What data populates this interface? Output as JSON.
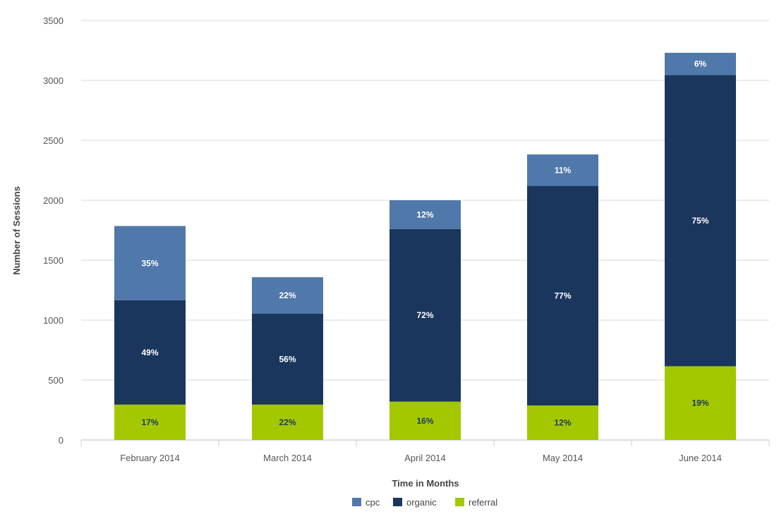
{
  "chart_data": {
    "type": "bar",
    "stacked": true,
    "categories": [
      "February 2014",
      "March 2014",
      "April 2014",
      "May 2014",
      "June 2014"
    ],
    "series": [
      {
        "name": "referral",
        "color": "#a4c800",
        "label_color": "#1b3a5c",
        "values": [
          295,
          295,
          320,
          288,
          615
        ],
        "labels": [
          "17%",
          "22%",
          "16%",
          "12%",
          "19%"
        ]
      },
      {
        "name": "organic",
        "color": "#1b365d",
        "label_color": "#ffffff",
        "values": [
          870,
          760,
          1440,
          1832,
          2430
        ],
        "labels": [
          "49%",
          "56%",
          "72%",
          "77%",
          "75%"
        ]
      },
      {
        "name": "cpc",
        "color": "#5078aa",
        "label_color": "#ffffff",
        "values": [
          620,
          303,
          240,
          262,
          185
        ],
        "labels": [
          "35%",
          "22%",
          "12%",
          "11%",
          "6%"
        ]
      }
    ],
    "legend_order": [
      "cpc",
      "organic",
      "referral"
    ],
    "xlabel": "Time in Months",
    "ylabel": "Number of Sessions",
    "ylim": [
      0,
      3500
    ],
    "yticks": [
      0,
      500,
      1000,
      1500,
      2000,
      2500,
      3000,
      3500
    ],
    "grid": true,
    "legend_position": "bottom-center"
  }
}
